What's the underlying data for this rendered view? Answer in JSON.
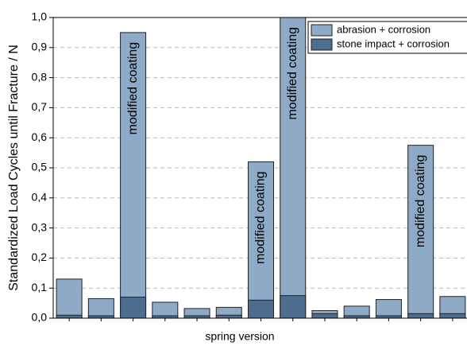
{
  "chart_data": {
    "type": "bar",
    "barmode": "overlay",
    "y_label": "Standardized Load Cycles until Fracture / N",
    "x_label": "spring version",
    "categories": [
      null,
      null,
      null,
      null,
      null,
      null,
      null,
      null,
      null,
      null,
      null,
      null,
      null
    ],
    "series": [
      {
        "name": "abrasion + corrosion",
        "color": "#8eaac6",
        "values": [
          0.13,
          0.065,
          0.95,
          0.053,
          0.032,
          0.036,
          0.52,
          1.0,
          0.025,
          0.04,
          0.062,
          0.575,
          0.072
        ]
      },
      {
        "name": "stone impact + corrosion",
        "color": "#4d6d8e",
        "values": [
          0.01,
          0.008,
          0.07,
          0.008,
          0.008,
          0.01,
          0.06,
          0.075,
          0.015,
          0.008,
          0.008,
          0.015,
          0.015
        ]
      }
    ],
    "annotations": [
      {
        "text": "modified coating",
        "category_index": 2
      },
      {
        "text": "modified coating",
        "category_index": 6
      },
      {
        "text": "modified coating",
        "category_index": 7
      },
      {
        "text": "modified coating",
        "category_index": 11
      }
    ],
    "ylim": [
      0,
      1.0
    ],
    "yticks": [
      {
        "value": 0,
        "label": "0,0"
      },
      {
        "value": 0.1,
        "label": "0,1"
      },
      {
        "value": 0.2,
        "label": "0,2"
      },
      {
        "value": 0.3,
        "label": "0,3"
      },
      {
        "value": 0.4,
        "label": "0,4"
      },
      {
        "value": 0.5,
        "label": "0,5"
      },
      {
        "value": 0.6,
        "label": "0,6"
      },
      {
        "value": 0.7,
        "label": "0,7"
      },
      {
        "value": 0.8,
        "label": "0,8"
      },
      {
        "value": 0.9,
        "label": "0,9"
      },
      {
        "value": 1.0,
        "label": "1,0"
      }
    ],
    "grid": true,
    "legend": "upper right"
  }
}
